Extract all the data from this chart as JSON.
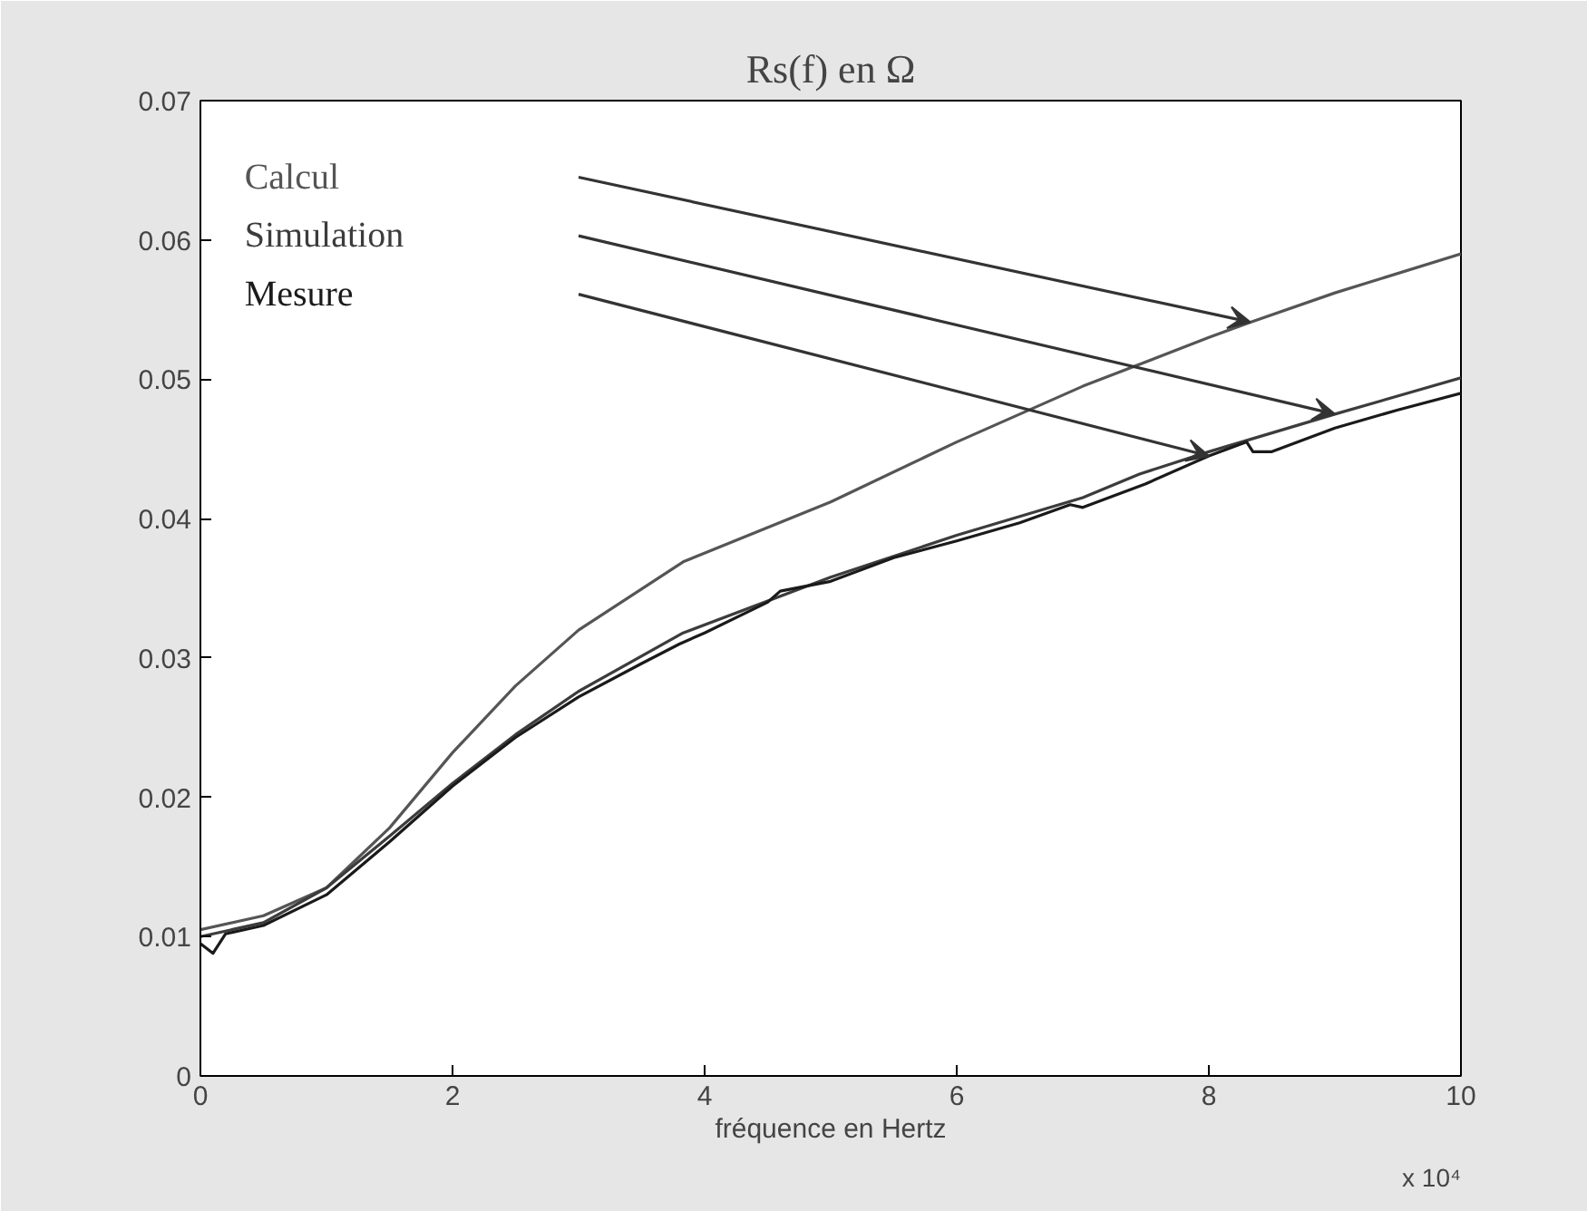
{
  "chart_data": {
    "type": "line",
    "title": "Rs(f) en Ω",
    "xlabel": "fréquence en Hertz",
    "annotations": [
      "x 10⁴"
    ],
    "xlim": [
      0,
      10
    ],
    "xticks": [
      0,
      2,
      4,
      6,
      8,
      10
    ],
    "ylim": [
      0,
      0.07
    ],
    "yticks": [
      0,
      0.01,
      0.02,
      0.03,
      0.04,
      0.05,
      0.06,
      0.07
    ],
    "grid": false,
    "legend": false,
    "marker": "none",
    "line_style": "solid",
    "series": [
      {
        "name": "Calcul",
        "color": "#555555",
        "x": [
          0,
          0.5,
          1,
          1.5,
          2,
          2.5,
          3,
          3.83,
          5,
          6,
          7,
          8,
          8.33,
          9,
          10
        ],
        "values": [
          0.0105,
          0.0115,
          0.0135,
          0.0178,
          0.0232,
          0.028,
          0.032,
          0.0369,
          0.0412,
          0.0455,
          0.0495,
          0.053,
          0.0541,
          0.0562,
          0.059
        ]
      },
      {
        "name": "Simulation",
        "color": "#3c3c3c",
        "x": [
          0,
          0.5,
          1,
          1.5,
          2,
          2.5,
          3,
          3.83,
          5,
          6,
          7,
          7.45,
          8,
          9,
          10
        ],
        "values": [
          0.01,
          0.011,
          0.0135,
          0.0172,
          0.021,
          0.0245,
          0.0276,
          0.0318,
          0.0358,
          0.0388,
          0.0415,
          0.0432,
          0.0448,
          0.0475,
          0.0501
        ]
      },
      {
        "name": "Mesure",
        "color": "#1a1a1a",
        "x": [
          0,
          0.1,
          0.2,
          0.5,
          1,
          1.5,
          2,
          2.5,
          3,
          3.5,
          3.8,
          4,
          4.5,
          4.6,
          5,
          5.5,
          6,
          6.5,
          6.9,
          7,
          7.5,
          8,
          8.3,
          8.35,
          8.5,
          9,
          9.5,
          10
        ],
        "values": [
          0.0095,
          0.0088,
          0.0102,
          0.0108,
          0.013,
          0.0168,
          0.0208,
          0.0243,
          0.0272,
          0.0296,
          0.031,
          0.0318,
          0.034,
          0.0348,
          0.0355,
          0.0372,
          0.0384,
          0.0397,
          0.041,
          0.0408,
          0.0425,
          0.0445,
          0.0455,
          0.0448,
          0.0448,
          0.0465,
          0.0478,
          0.049
        ]
      }
    ]
  }
}
